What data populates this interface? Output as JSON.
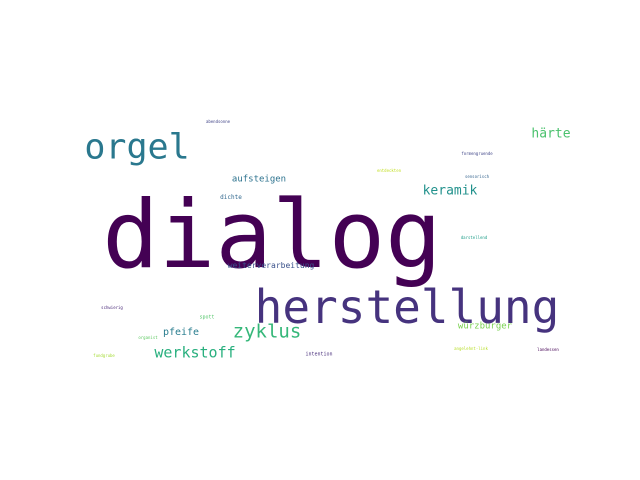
{
  "words": [
    {
      "text": "dialog",
      "color": "#440154"
    },
    {
      "text": "herstellung",
      "color": "#46337e"
    },
    {
      "text": "orgel",
      "color": "#2a788e"
    },
    {
      "text": "zyklus",
      "color": "#35b779"
    },
    {
      "text": "werkstoff",
      "color": "#2ab07f"
    },
    {
      "text": "keramik",
      "color": "#21918c"
    },
    {
      "text": "härte",
      "color": "#4ac16d"
    },
    {
      "text": "aufsteigen",
      "color": "#2c728e"
    },
    {
      "text": "weiterverarbeitung",
      "color": "#3b528b"
    },
    {
      "text": "pfeife",
      "color": "#287c8e"
    },
    {
      "text": "würzburger",
      "color": "#7ad151"
    },
    {
      "text": "spott",
      "color": "#52c569"
    },
    {
      "text": "dichte",
      "color": "#31688e"
    },
    {
      "text": "intention",
      "color": "#472d7b"
    },
    {
      "text": "abendsonne",
      "color": "#414487"
    },
    {
      "text": "entdeckten",
      "color": "#c2df23"
    },
    {
      "text": "formengruende",
      "color": "#404688"
    },
    {
      "text": "sensorisch",
      "color": "#33638d"
    },
    {
      "text": "darstellend",
      "color": "#1f9e89"
    },
    {
      "text": "schwierig",
      "color": "#482878"
    },
    {
      "text": "organist",
      "color": "#5ec962"
    },
    {
      "text": "fundgrube",
      "color": "#a5db36"
    },
    {
      "text": "angelehnt-link",
      "color": "#b8de29"
    },
    {
      "text": "landessen",
      "color": "#440154"
    }
  ]
}
